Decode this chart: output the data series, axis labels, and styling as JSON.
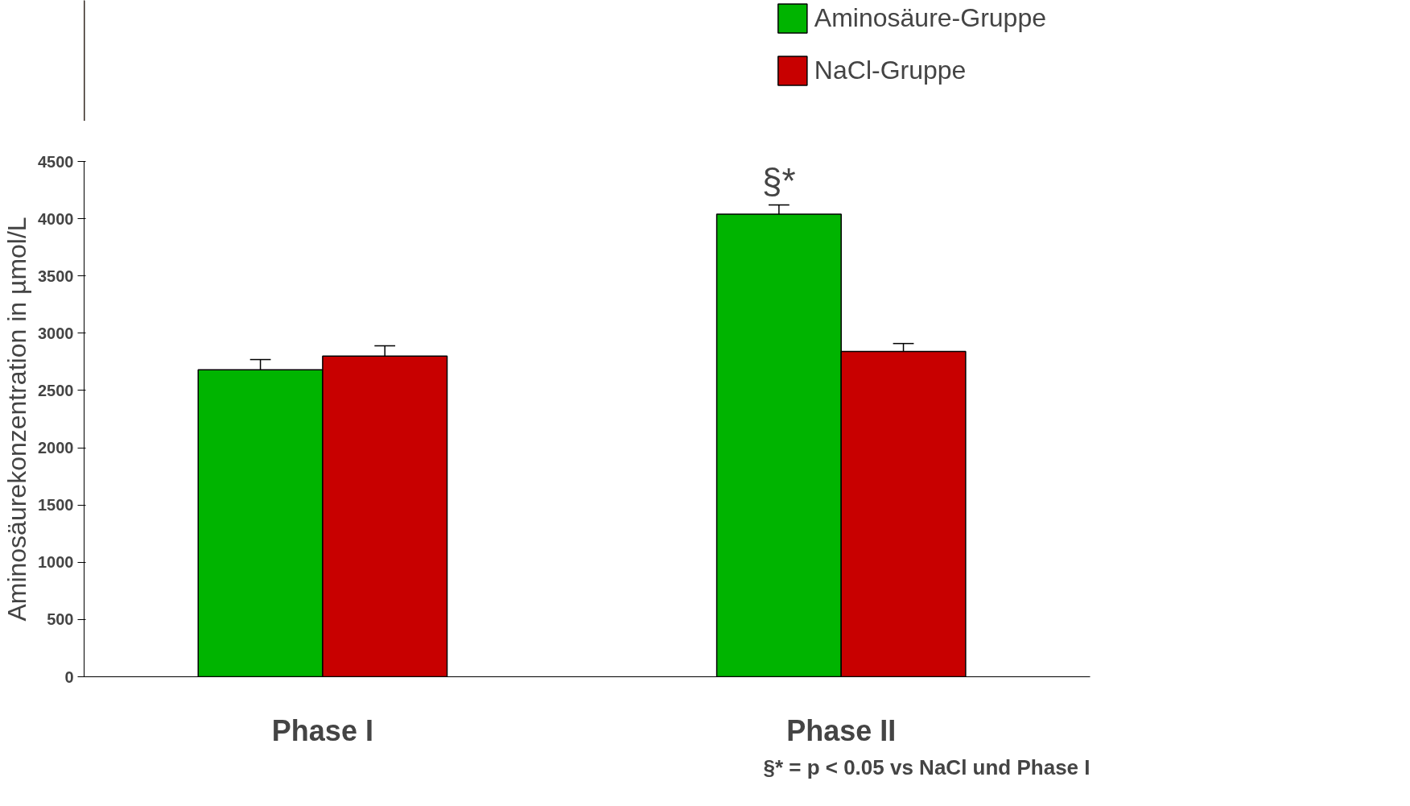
{
  "chart_data": {
    "type": "bar",
    "ylabel": "Aminosäurekonzentration in µmol/L",
    "categories": [
      "Phase I",
      "Phase II"
    ],
    "series": [
      {
        "name": "Aminosäure-Gruppe",
        "color": "#00b400",
        "values": [
          2680,
          4040
        ],
        "errors": [
          [
            2680,
            2770
          ],
          [
            4040,
            4120
          ]
        ]
      },
      {
        "name": "NaCl-Gruppe",
        "color": "#c80000",
        "values": [
          2800,
          2840
        ],
        "errors": [
          [
            2800,
            2890
          ],
          [
            2840,
            2910
          ]
        ]
      }
    ],
    "ylim": [
      0,
      4500
    ],
    "yticks": [
      0,
      500,
      1000,
      1500,
      2000,
      2500,
      3000,
      3500,
      4000,
      4500
    ],
    "legend": "top right",
    "annotations": [
      "§*",
      "§* = p < 0.05 vs NaCl und Phase I"
    ]
  }
}
